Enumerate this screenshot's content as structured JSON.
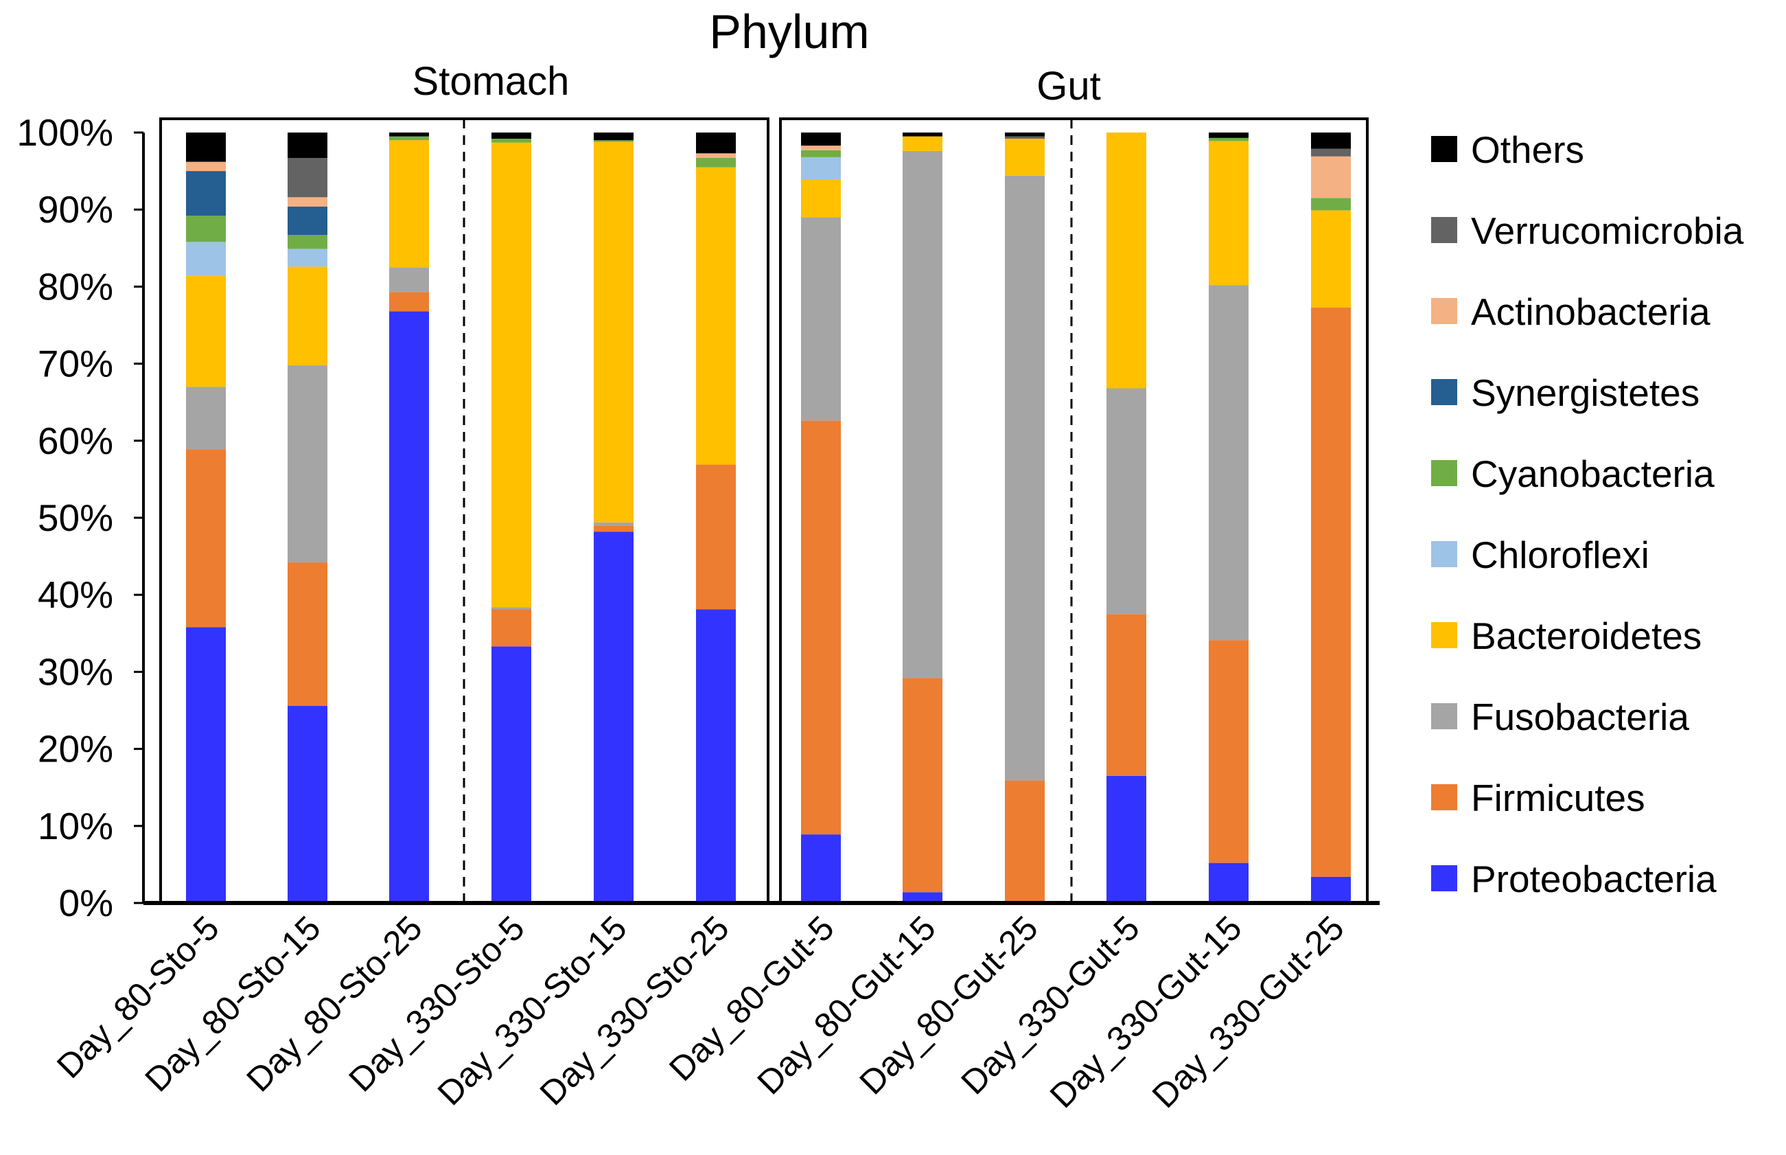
{
  "chart_data": {
    "type": "bar",
    "stacked": true,
    "title": "Phylum",
    "panels": [
      "Stomach",
      "Gut"
    ],
    "xlabel": "",
    "ylabel": "",
    "ylim": [
      0,
      100
    ],
    "yticks": [
      "0%",
      "10%",
      "20%",
      "30%",
      "40%",
      "50%",
      "60%",
      "70%",
      "80%",
      "90%",
      "100%"
    ],
    "categories": [
      "Day_80-Sto-5",
      "Day_80-Sto-15",
      "Day_80-Sto-25",
      "Day_330-Sto-5",
      "Day_330-Sto-15",
      "Day_330-Sto-25",
      "Day_80-Gut-5",
      "Day_80-Gut-15",
      "Day_80-Gut-25",
      "Day_330-Gut-5",
      "Day_330-Gut-15",
      "Day_330-Gut-25"
    ],
    "series": [
      {
        "name": "Proteobacteria",
        "color": "#3333FF",
        "values": [
          35.8,
          25.6,
          76.8,
          33.3,
          48.2,
          38.1,
          8.9,
          1.4,
          0.0,
          16.5,
          5.2,
          3.4
        ]
      },
      {
        "name": "Firmicutes",
        "color": "#ED7D31",
        "values": [
          23.1,
          18.6,
          2.5,
          4.8,
          0.8,
          18.8,
          53.7,
          27.8,
          15.9,
          21.0,
          28.9,
          73.9
        ]
      },
      {
        "name": "Fusobacteria",
        "color": "#A5A5A5",
        "values": [
          8.1,
          25.6,
          3.2,
          0.3,
          0.4,
          0.0,
          26.4,
          68.4,
          78.5,
          29.3,
          46.1,
          0.0
        ]
      },
      {
        "name": "Bacteroidetes",
        "color": "#FFC000",
        "values": [
          14.4,
          12.8,
          16.5,
          60.3,
          49.4,
          38.6,
          4.9,
          1.9,
          4.8,
          33.2,
          18.7,
          12.6
        ]
      },
      {
        "name": "Chloroflexi",
        "color": "#9DC3E6",
        "values": [
          4.4,
          2.3,
          0.0,
          0.0,
          0.0,
          0.0,
          2.9,
          0.0,
          0.0,
          0.0,
          0.0,
          0.0
        ]
      },
      {
        "name": "Cyanobacteria",
        "color": "#70AD47",
        "values": [
          3.4,
          1.8,
          0.5,
          0.5,
          0.2,
          1.2,
          0.9,
          0.0,
          0.0,
          0.0,
          0.4,
          1.6
        ]
      },
      {
        "name": "Synergistetes",
        "color": "#255E91",
        "values": [
          5.8,
          3.7,
          0.0,
          0.0,
          0.0,
          0.0,
          0.0,
          0.0,
          0.0,
          0.0,
          0.0,
          0.0
        ]
      },
      {
        "name": "Actinobacteria",
        "color": "#F4B183",
        "values": [
          1.2,
          1.2,
          0.0,
          0.0,
          0.0,
          0.6,
          0.6,
          0.0,
          0.0,
          0.0,
          0.0,
          5.4
        ]
      },
      {
        "name": "Verrucomicrobia",
        "color": "#636363",
        "values": [
          0.0,
          5.1,
          0.0,
          0.0,
          0.0,
          0.0,
          0.0,
          0.0,
          0.3,
          0.0,
          0.0,
          1.0
        ]
      },
      {
        "name": "Others",
        "color": "#000000",
        "values": [
          3.8,
          3.3,
          0.5,
          0.8,
          1.0,
          2.7,
          1.7,
          0.5,
          0.5,
          0.0,
          0.7,
          2.1
        ]
      }
    ],
    "legend_position": "right"
  }
}
